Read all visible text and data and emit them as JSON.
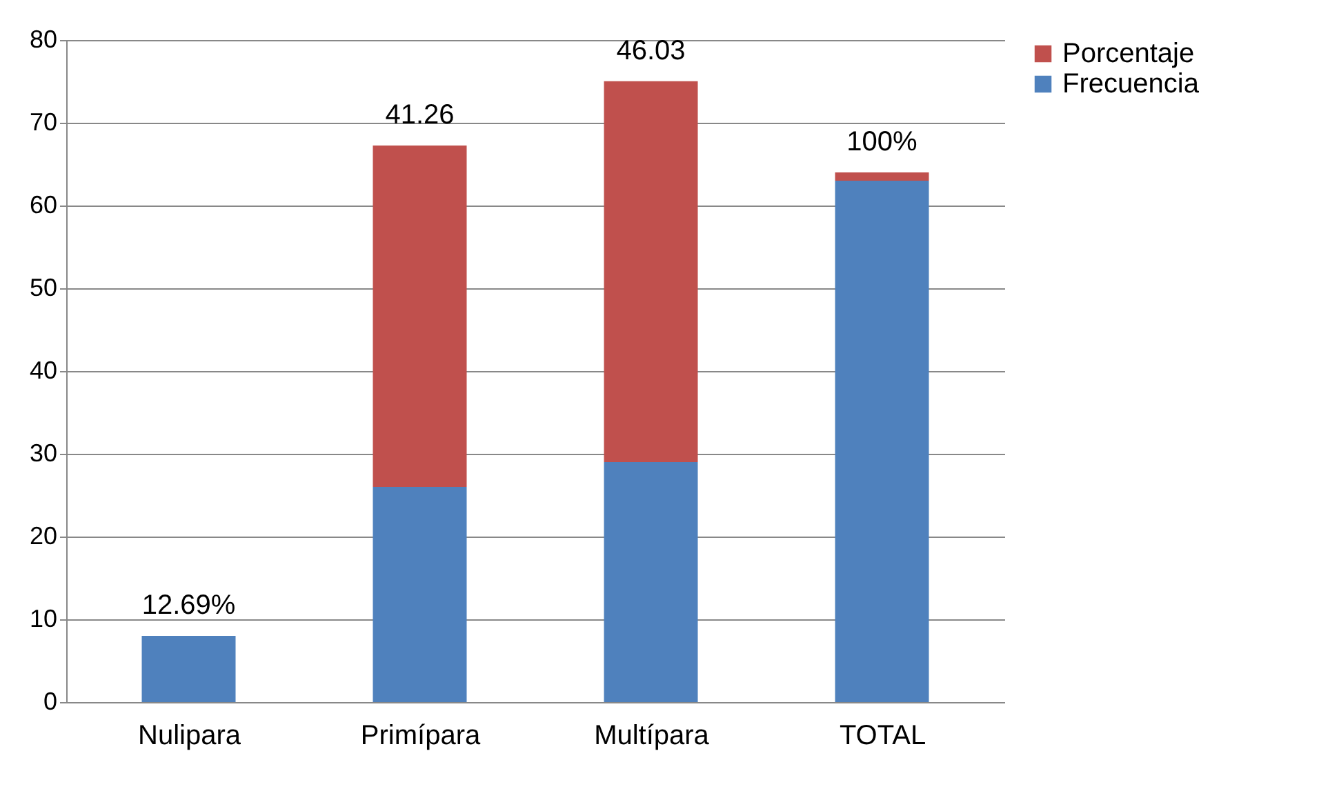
{
  "chart_data": {
    "type": "bar",
    "stacked": true,
    "categories": [
      "Nulipara",
      "Primípara",
      "Multípara",
      "TOTAL"
    ],
    "series": [
      {
        "name": "Frecuencia",
        "color": "#4f81bd",
        "values": [
          8,
          26,
          29,
          63
        ]
      },
      {
        "name": "Porcentaje",
        "color": "#c0504d",
        "values": [
          null,
          41.26,
          46.03,
          1
        ],
        "value_labels": [
          "12.69%",
          "41.26",
          "46.03",
          "100%"
        ]
      }
    ],
    "ylim": [
      0,
      80
    ],
    "yticks": [
      0,
      10,
      20,
      30,
      40,
      50,
      60,
      70,
      80
    ],
    "grid": "y",
    "legend": "right"
  }
}
